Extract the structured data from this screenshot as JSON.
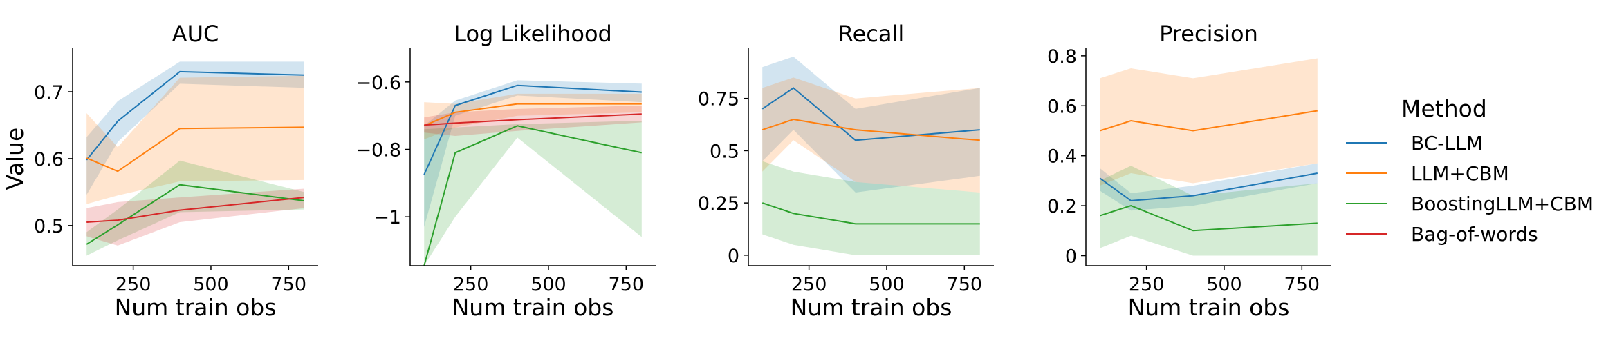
{
  "figure": {
    "ylabel": "Value",
    "legend_title": "Method"
  },
  "legend": [
    {
      "name": "BC-LLM",
      "color": "#1f77b4"
    },
    {
      "name": "LLM+CBM",
      "color": "#ff7f0e"
    },
    {
      "name": "BoostingLLM+CBM",
      "color": "#2ca02c"
    },
    {
      "name": "Bag-of-words",
      "color": "#d62728"
    }
  ],
  "chart_data": [
    {
      "type": "line",
      "title": "AUC",
      "xlabel": "Num train obs",
      "ylabel": "Value",
      "x": [
        100,
        200,
        400,
        800
      ],
      "xlim": [
        55,
        845
      ],
      "ylim": [
        0.44,
        0.765
      ],
      "xticks": [
        250,
        500,
        750
      ],
      "yticks": [
        0.5,
        0.6,
        0.7
      ],
      "series": [
        {
          "name": "BC-LLM",
          "color": "#1f77b4",
          "values": [
            0.598,
            0.656,
            0.73,
            0.725
          ],
          "lower": [
            0.546,
            0.625,
            0.712,
            0.706
          ],
          "upper": [
            0.632,
            0.686,
            0.745,
            0.745
          ]
        },
        {
          "name": "LLM+CBM",
          "color": "#ff7f0e",
          "values": [
            0.601,
            0.581,
            0.645,
            0.647
          ],
          "lower": [
            0.532,
            0.545,
            0.566,
            0.568
          ],
          "upper": [
            0.668,
            0.617,
            0.721,
            0.724
          ]
        },
        {
          "name": "BoostingLLM+CBM",
          "color": "#2ca02c",
          "values": [
            0.472,
            0.501,
            0.561,
            0.537
          ],
          "lower": [
            0.455,
            0.478,
            0.52,
            0.524
          ],
          "upper": [
            0.49,
            0.524,
            0.597,
            0.55
          ]
        },
        {
          "name": "Bag-of-words",
          "color": "#d62728",
          "values": [
            0.505,
            0.508,
            0.523,
            0.542
          ],
          "lower": [
            0.484,
            0.47,
            0.505,
            0.526
          ],
          "upper": [
            0.526,
            0.535,
            0.542,
            0.555
          ]
        }
      ]
    },
    {
      "type": "line",
      "title": "Log Likelihood",
      "xlabel": "Num train obs",
      "ylabel": "",
      "x": [
        100,
        200,
        400,
        800
      ],
      "xlim": [
        55,
        845
      ],
      "ylim": [
        -1.145,
        -0.5
      ],
      "xticks": [
        250,
        500,
        750
      ],
      "yticks": [
        -1.0,
        -0.8,
        -0.6
      ],
      "series": [
        {
          "name": "BC-LLM",
          "color": "#1f77b4",
          "values": [
            -0.875,
            -0.67,
            -0.61,
            -0.63
          ],
          "lower": [
            -1.03,
            -0.7,
            -0.64,
            -0.66
          ],
          "upper": [
            -0.73,
            -0.655,
            -0.595,
            -0.605
          ]
        },
        {
          "name": "LLM+CBM",
          "color": "#ff7f0e",
          "values": [
            -0.73,
            -0.69,
            -0.665,
            -0.665
          ],
          "lower": [
            -0.77,
            -0.735,
            -0.7,
            -0.69
          ],
          "upper": [
            -0.66,
            -0.665,
            -0.635,
            -0.635
          ]
        },
        {
          "name": "BoostingLLM+CBM",
          "color": "#2ca02c",
          "values": [
            -1.145,
            -0.81,
            -0.73,
            -0.81
          ],
          "lower": [
            -1.145,
            -1.0,
            -0.765,
            -1.06
          ],
          "upper": [
            -0.74,
            -0.735,
            -0.725,
            -0.715
          ]
        },
        {
          "name": "Bag-of-words",
          "color": "#d62728",
          "values": [
            -0.728,
            -0.722,
            -0.712,
            -0.695
          ],
          "lower": [
            -0.75,
            -0.76,
            -0.745,
            -0.72
          ],
          "upper": [
            -0.705,
            -0.69,
            -0.68,
            -0.67
          ]
        }
      ]
    },
    {
      "type": "line",
      "title": "Recall",
      "xlabel": "Num train obs",
      "ylabel": "",
      "x": [
        100,
        200,
        400,
        800
      ],
      "xlim": [
        55,
        845
      ],
      "ylim": [
        -0.05,
        0.99
      ],
      "xticks": [
        250,
        500,
        750
      ],
      "yticks": [
        0.0,
        0.25,
        0.5,
        0.75
      ],
      "series": [
        {
          "name": "BC-LLM",
          "color": "#1f77b4",
          "values": [
            0.7,
            0.8,
            0.55,
            0.6
          ],
          "lower": [
            0.45,
            0.6,
            0.3,
            0.38
          ],
          "upper": [
            0.9,
            0.95,
            0.7,
            0.8
          ]
        },
        {
          "name": "LLM+CBM",
          "color": "#ff7f0e",
          "values": [
            0.6,
            0.65,
            0.6,
            0.55
          ],
          "lower": [
            0.4,
            0.55,
            0.35,
            0.3
          ],
          "upper": [
            0.8,
            0.85,
            0.75,
            0.8
          ]
        },
        {
          "name": "BoostingLLM+CBM",
          "color": "#2ca02c",
          "values": [
            0.25,
            0.2,
            0.15,
            0.15
          ],
          "lower": [
            0.1,
            0.05,
            0.0,
            0.0
          ],
          "upper": [
            0.45,
            0.4,
            0.35,
            0.3
          ]
        }
      ]
    },
    {
      "type": "line",
      "title": "Precision",
      "xlabel": "Num train obs",
      "ylabel": "",
      "x": [
        100,
        200,
        400,
        800
      ],
      "xlim": [
        55,
        845
      ],
      "ylim": [
        -0.04,
        0.83
      ],
      "xticks": [
        250,
        500,
        750
      ],
      "yticks": [
        0.0,
        0.2,
        0.4,
        0.6,
        0.8
      ],
      "series": [
        {
          "name": "BC-LLM",
          "color": "#1f77b4",
          "values": [
            0.31,
            0.22,
            0.24,
            0.33
          ],
          "lower": [
            0.26,
            0.18,
            0.2,
            0.29
          ],
          "upper": [
            0.35,
            0.25,
            0.28,
            0.37
          ]
        },
        {
          "name": "LLM+CBM",
          "color": "#ff7f0e",
          "values": [
            0.5,
            0.54,
            0.5,
            0.58
          ],
          "lower": [
            0.28,
            0.33,
            0.29,
            0.37
          ],
          "upper": [
            0.71,
            0.75,
            0.71,
            0.79
          ]
        },
        {
          "name": "BoostingLLM+CBM",
          "color": "#2ca02c",
          "values": [
            0.16,
            0.2,
            0.1,
            0.13
          ],
          "lower": [
            0.03,
            0.08,
            0.0,
            0.0
          ],
          "upper": [
            0.3,
            0.36,
            0.24,
            0.29
          ]
        }
      ]
    }
  ]
}
